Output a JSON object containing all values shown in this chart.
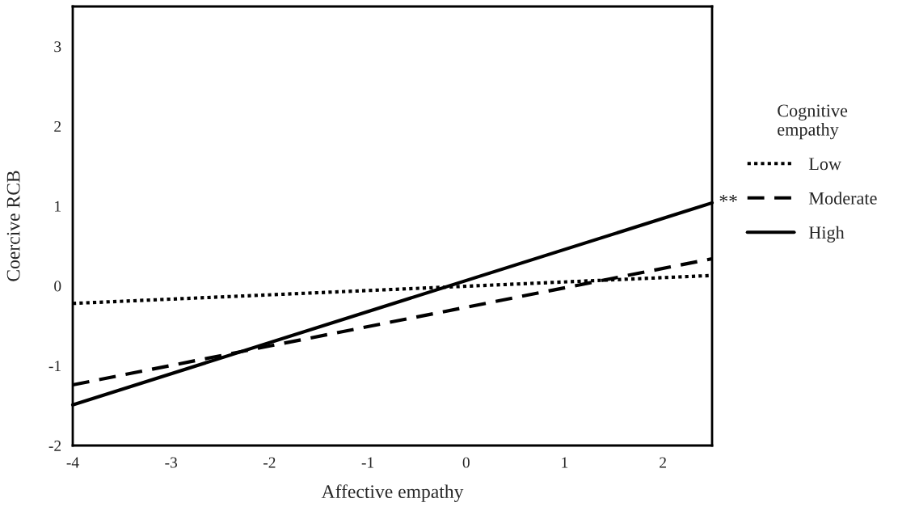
{
  "chart_data": {
    "type": "line",
    "xlabel": "Affective empathy",
    "ylabel": "Coercive RCB",
    "legend_title": "Cognitive\nempathy",
    "x": [
      -4,
      2.5
    ],
    "series": [
      {
        "name": "Low",
        "color": "#000000",
        "values": [
          -0.22,
          0.13
        ],
        "line_style": "dotted"
      },
      {
        "name": "Moderate",
        "color": "#000000",
        "values": [
          -1.24,
          0.34
        ],
        "line_style": "dashed"
      },
      {
        "name": "High",
        "color": "#000000",
        "values": [
          -1.49,
          1.04
        ],
        "line_style": "solid"
      }
    ],
    "annotations": [
      {
        "text": "**",
        "x": 2.5,
        "y": 1.04
      }
    ],
    "xlim": [
      -4,
      2.5
    ],
    "xticks": [
      -4,
      -3,
      -2,
      -1,
      0,
      1,
      2
    ],
    "ylim": [
      -2,
      3.5
    ],
    "yticks": [
      -2,
      -1,
      0,
      1,
      2,
      3
    ],
    "grid": false,
    "legend": "right",
    "marker": "none"
  }
}
